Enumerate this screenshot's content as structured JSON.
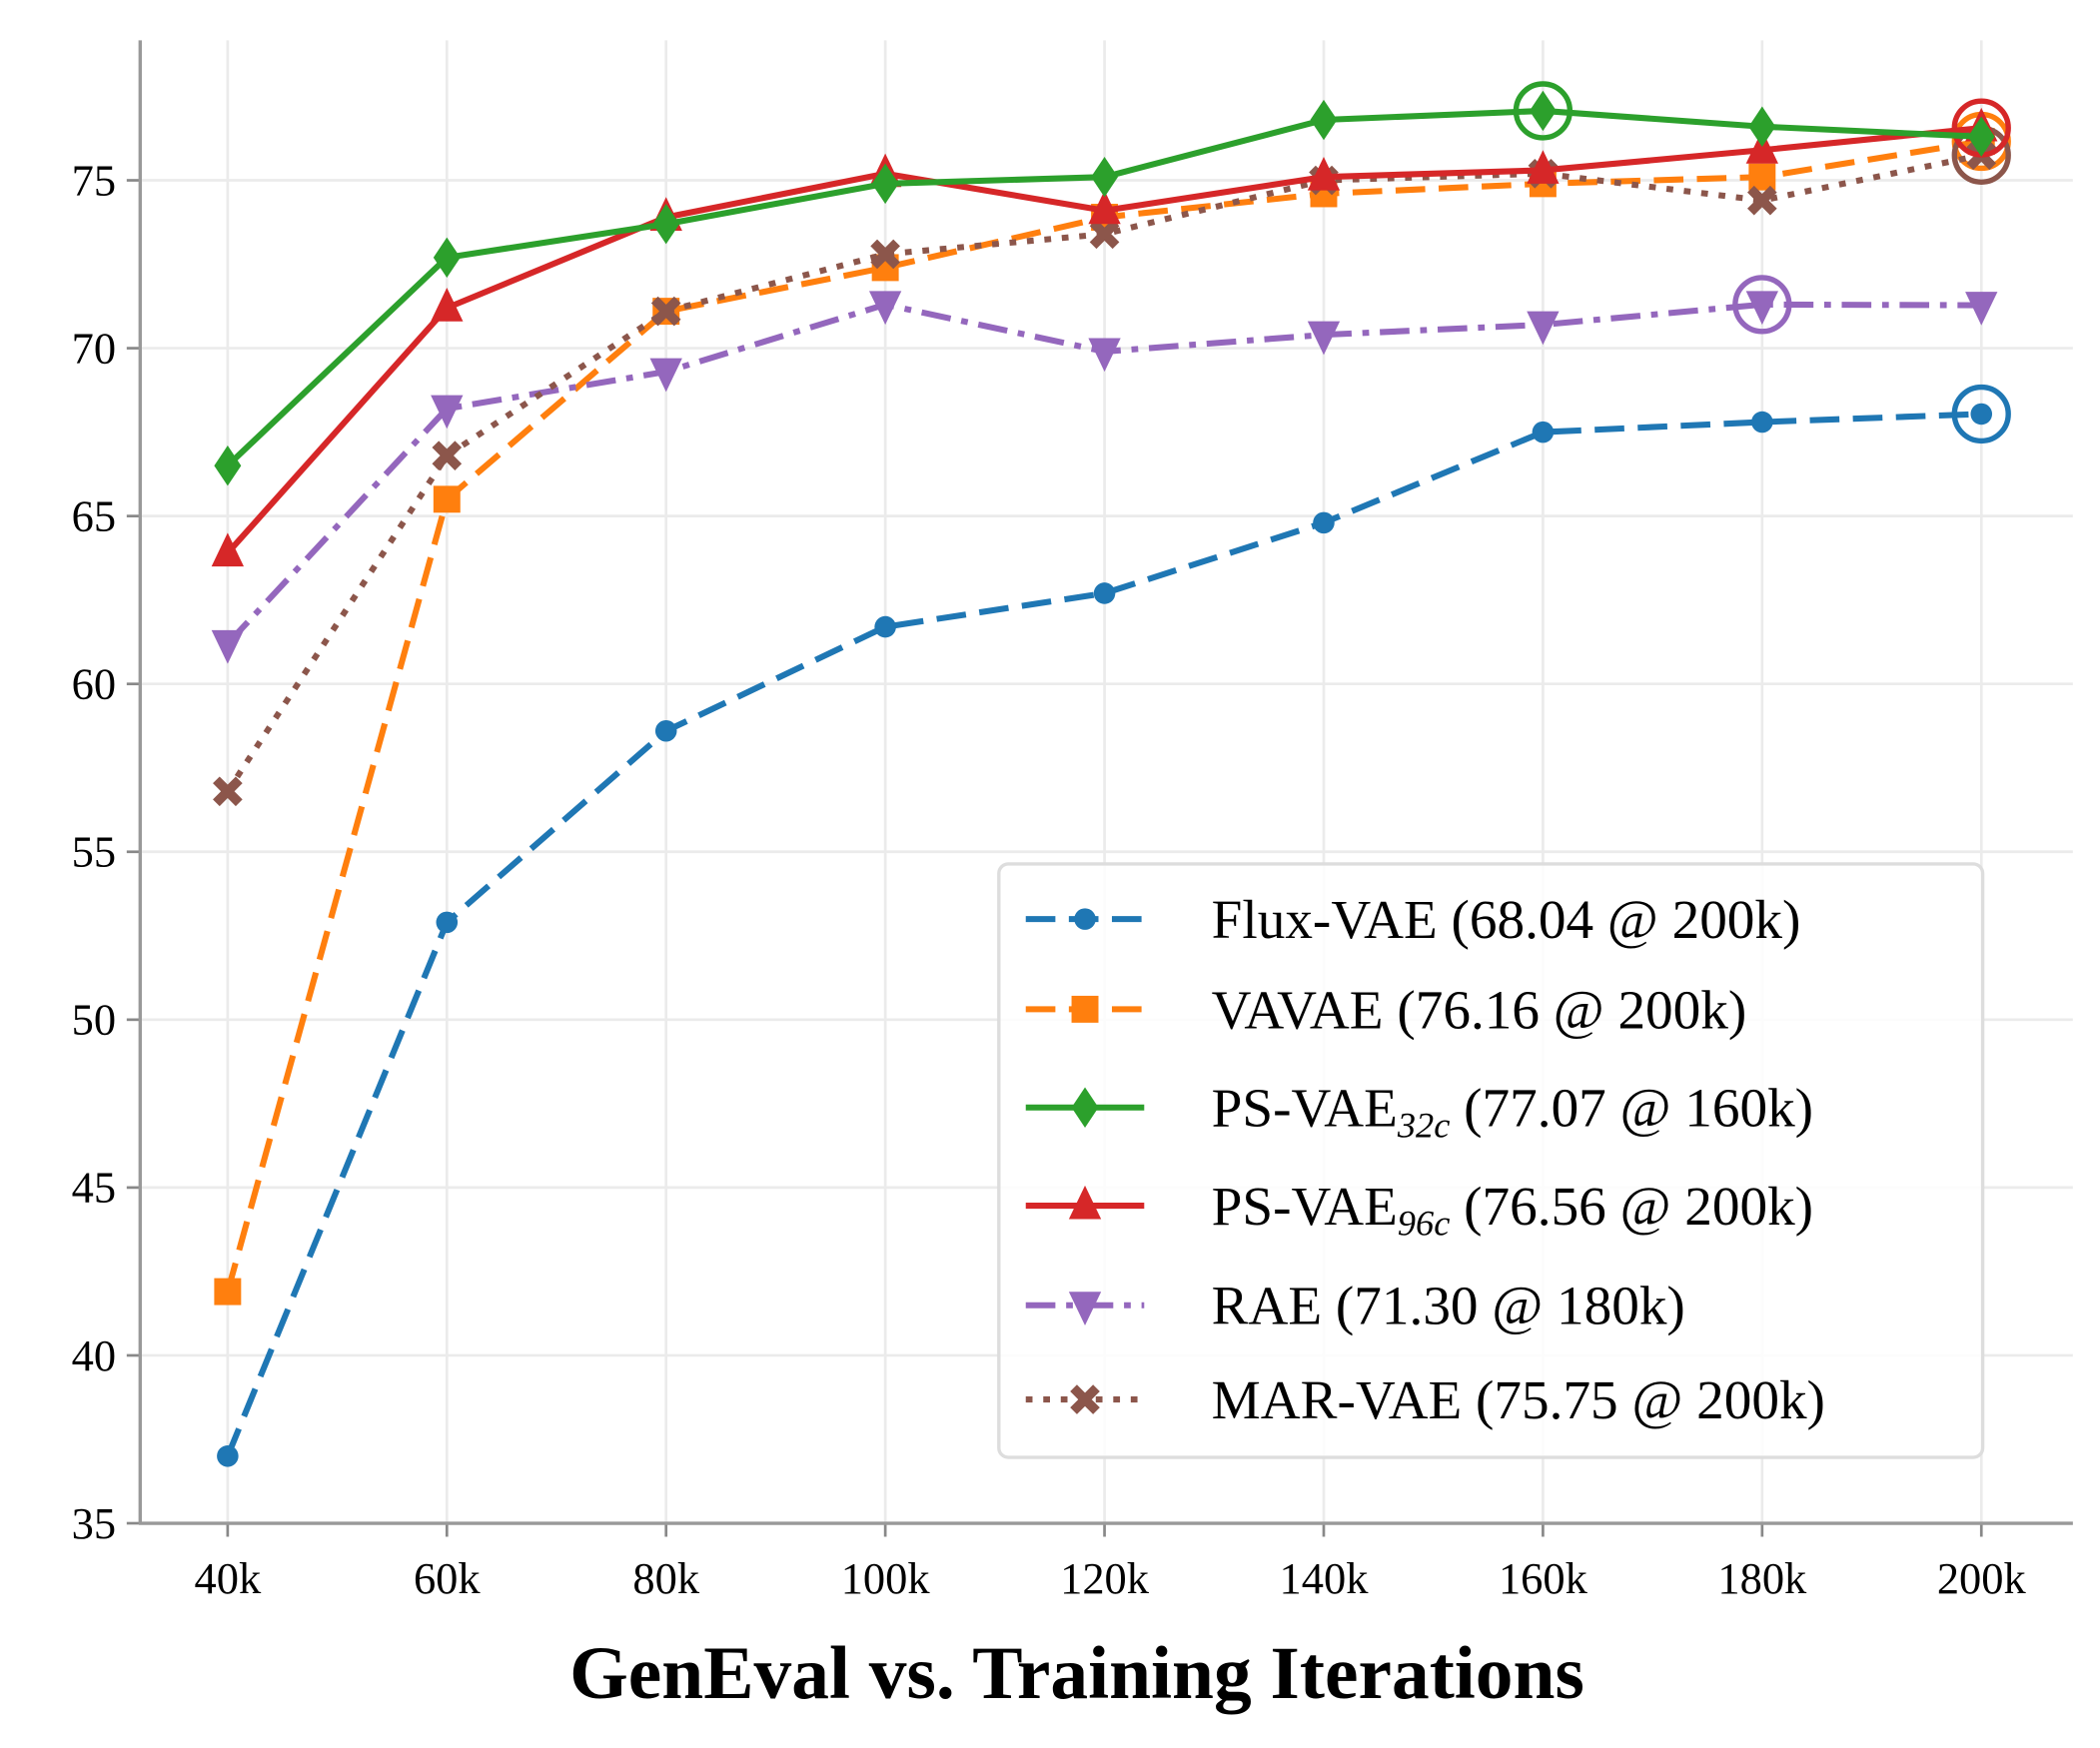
{
  "chart_data": {
    "type": "line",
    "title": "GenEval vs. Training Iterations",
    "xlabel": "GenEval vs. Training Iterations",
    "ylabel": "",
    "categories": [
      "40k",
      "60k",
      "80k",
      "100k",
      "120k",
      "140k",
      "160k",
      "180k",
      "200k"
    ],
    "yticks": [
      "35",
      "40",
      "45",
      "50",
      "55",
      "60",
      "65",
      "70",
      "75"
    ],
    "ylim": [
      35,
      79.2
    ],
    "grid": true,
    "legend_position": "lower-right",
    "series": [
      {
        "name": "Flux-VAE",
        "label": {
          "base": "Flux-VAE",
          "sub": "",
          "rest": " (68.04 @ 200k)"
        },
        "color": "#1f77b4",
        "marker": "circle",
        "linestyle": "dashed",
        "best_index": 8,
        "values": [
          37.0,
          52.9,
          58.6,
          61.7,
          62.7,
          64.8,
          67.5,
          67.8,
          68.04
        ]
      },
      {
        "name": "VAVAE",
        "label": {
          "base": "VAVAE",
          "sub": "",
          "rest": " (76.16 @ 200k)"
        },
        "color": "#ff7f0e",
        "marker": "square",
        "linestyle": "dashed",
        "best_index": 8,
        "values": [
          41.9,
          65.5,
          71.1,
          72.4,
          73.9,
          74.6,
          74.9,
          75.1,
          76.16
        ]
      },
      {
        "name": "PS-VAE32c",
        "label": {
          "base": "PS-VAE",
          "sub": "32c",
          "rest": " (77.07 @ 160k)"
        },
        "color": "#2ca02c",
        "marker": "diamond",
        "linestyle": "solid",
        "best_index": 6,
        "values": [
          66.5,
          72.7,
          73.7,
          74.9,
          75.1,
          76.8,
          77.07,
          76.6,
          76.3
        ]
      },
      {
        "name": "PS-VAE96c",
        "label": {
          "base": "PS-VAE",
          "sub": "96c",
          "rest": " (76.56 @ 200k)"
        },
        "color": "#d62728",
        "marker": "triangle-up",
        "linestyle": "solid",
        "best_index": 8,
        "values": [
          63.9,
          71.2,
          73.9,
          75.2,
          74.1,
          75.1,
          75.3,
          75.9,
          76.56
        ]
      },
      {
        "name": "RAE",
        "label": {
          "base": "RAE",
          "sub": "",
          "rest": " (71.30 @ 180k)"
        },
        "color": "#9467bd",
        "marker": "triangle-down",
        "linestyle": "dashdot",
        "best_index": 7,
        "values": [
          61.2,
          68.2,
          69.3,
          71.3,
          69.9,
          70.4,
          70.7,
          71.3,
          71.28
        ]
      },
      {
        "name": "MAR-VAE",
        "label": {
          "base": "MAR-VAE",
          "sub": "",
          "rest": " (75.75 @ 200k)"
        },
        "color": "#8c564b",
        "marker": "x",
        "linestyle": "dotted",
        "best_index": 8,
        "values": [
          56.8,
          66.8,
          71.1,
          72.8,
          73.4,
          75.0,
          75.2,
          74.4,
          75.75
        ]
      }
    ]
  }
}
